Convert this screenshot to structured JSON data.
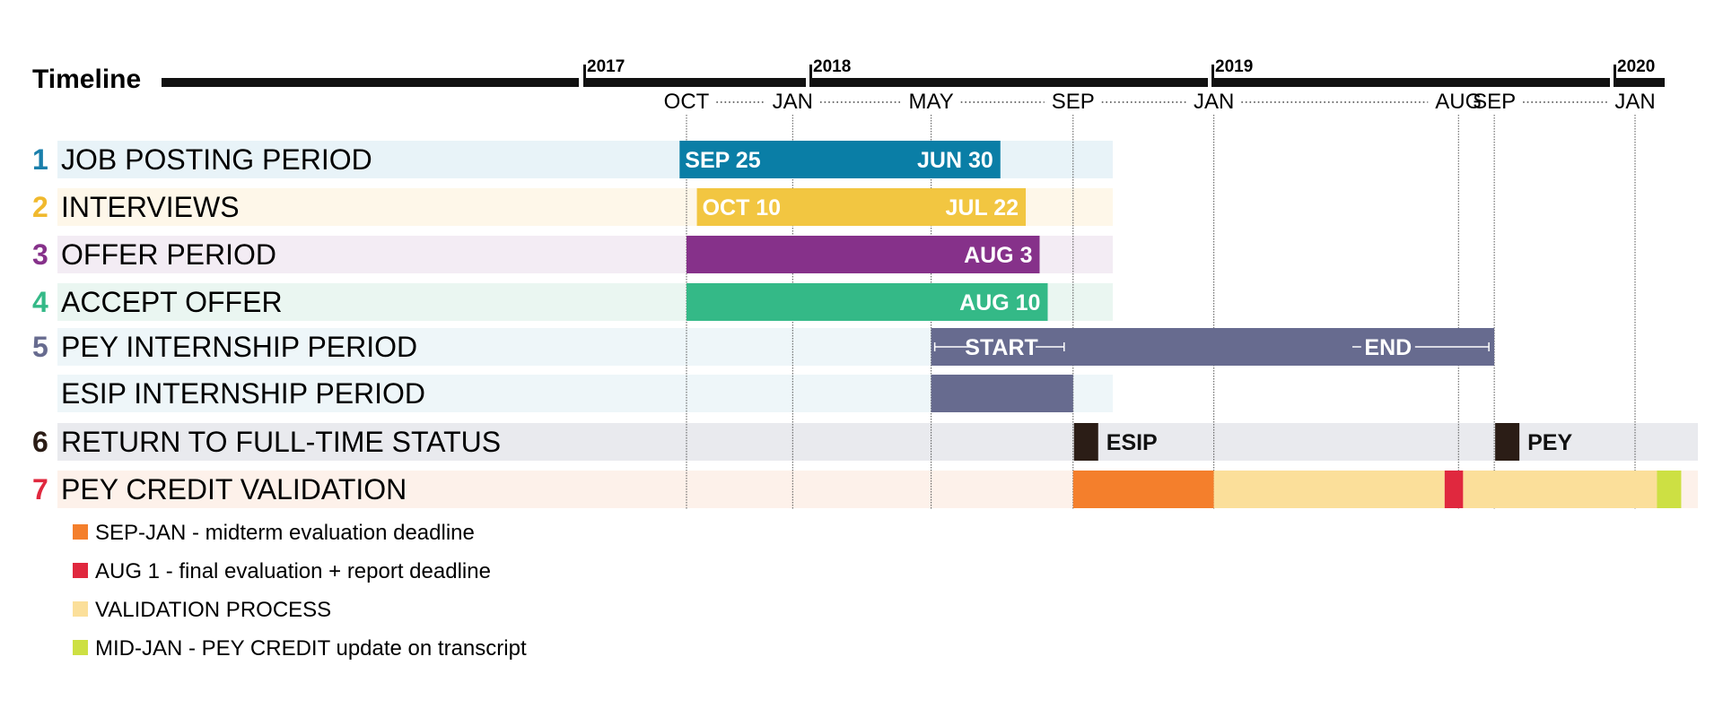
{
  "title": "Timeline",
  "chart_data": {
    "type": "timeline",
    "axis": {
      "years": [
        "2017",
        "2018",
        "2019",
        "2020"
      ],
      "months": [
        "OCT",
        "JAN",
        "MAY",
        "SEP",
        "JAN",
        "AUG",
        "SEP",
        "JAN"
      ],
      "month_dates": [
        "2017-10",
        "2018-01",
        "2018-05",
        "2018-09",
        "2019-01",
        "2019-08",
        "2019-09",
        "2020-01"
      ]
    },
    "rows": [
      {
        "num": "1",
        "label": "JOB POSTING PERIOD",
        "color": "#0a7ea6",
        "bg": "#e8f3f8",
        "bars": [
          {
            "start": "2017-09-25",
            "end": "2018-06-30",
            "start_label": "SEP 25",
            "end_label": "JUN 30"
          }
        ]
      },
      {
        "num": "2",
        "label": "INTERVIEWS",
        "color": "#f2c641",
        "bg": "#fef7e9",
        "bars": [
          {
            "start": "2017-10-10",
            "end": "2018-07-22",
            "start_label": "OCT 10",
            "end_label": "JUL 22"
          }
        ]
      },
      {
        "num": "3",
        "label": "OFFER PERIOD",
        "color": "#86318a",
        "bg": "#f3ecf4",
        "bars": [
          {
            "start": "2017-10-01",
            "end": "2018-08-03",
            "start_label": "",
            "end_label": "AUG 3"
          }
        ]
      },
      {
        "num": "4",
        "label": "ACCEPT OFFER",
        "color": "#34b987",
        "bg": "#eaf6f1",
        "bars": [
          {
            "start": "2017-10-01",
            "end": "2018-08-10",
            "start_label": "",
            "end_label": "AUG 10"
          }
        ]
      },
      {
        "num": "5",
        "label": "PEY INTERNSHIP PERIOD",
        "color": "#676b8f",
        "bg": "#eef6f9",
        "bars": [
          {
            "start": "2018-05-01",
            "end": "2019-09-01",
            "start_label": "START",
            "end_label": "END"
          }
        ]
      },
      {
        "num": "",
        "label": "ESIP INTERNSHIP PERIOD",
        "color": "#676b8f",
        "bg": "#eef6f9",
        "bars": [
          {
            "start": "2018-05-01",
            "end": "2018-09-01",
            "start_label": "",
            "end_label": ""
          }
        ]
      },
      {
        "num": "6",
        "label": "RETURN TO FULL-TIME STATUS",
        "color": "#2b1d16",
        "bg": "#e9eaee",
        "markers": [
          {
            "date": "2018-09-01",
            "label": "ESIP"
          },
          {
            "date": "2019-09-01",
            "label": "PEY"
          }
        ]
      },
      {
        "num": "7",
        "label": "PEY CREDIT VALIDATION",
        "color": "#e0283e",
        "bg": "#fdf1ea",
        "segments": [
          {
            "start": "2018-09-01",
            "end": "2019-01-01",
            "color": "#f47f2c"
          },
          {
            "start": "2019-01-01",
            "end": "2019-07-20",
            "color": "#fbdf9a"
          },
          {
            "start": "2019-07-20",
            "end": "2019-08-05",
            "color": "#e0283e"
          },
          {
            "start": "2019-08-05",
            "end": "2020-01-20",
            "color": "#fbdf9a"
          },
          {
            "start": "2020-01-20",
            "end": "2020-02-10",
            "color": "#cde043"
          }
        ]
      }
    ],
    "row_number_colors": [
      "#1a7fab",
      "#f0b92e",
      "#86318a",
      "#34b987",
      "#676b8f",
      "",
      "#2b1d16",
      "#e0283e"
    ],
    "legend": [
      {
        "color": "#f47f2c",
        "label": "SEP-JAN - midterm evaluation deadline"
      },
      {
        "color": "#e0283e",
        "label": "AUG 1 - final evaluation + report deadline"
      },
      {
        "color": "#fbdf9a",
        "label": "VALIDATION PROCESS"
      },
      {
        "color": "#cde043",
        "label": "MID-JAN - PEY CREDIT update on transcript"
      }
    ]
  }
}
